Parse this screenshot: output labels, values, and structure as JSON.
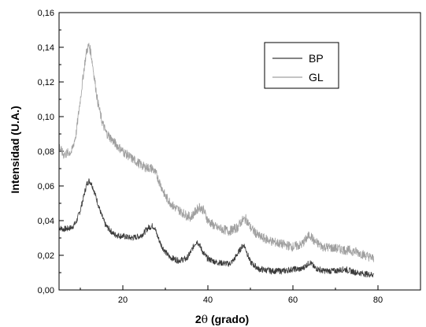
{
  "chart_data": {
    "type": "line",
    "title": "",
    "xlabel_prefix": "2",
    "xlabel_symbol": "θ",
    "xlabel_suffix": " (grado)",
    "ylabel": "Intensidad (U.A.)",
    "xlim": [
      5,
      90
    ],
    "ylim": [
      0.0,
      0.16
    ],
    "x_ticks": [
      20,
      40,
      60,
      80
    ],
    "x_tick_labels": [
      "20",
      "40",
      "60",
      "80"
    ],
    "y_ticks": [
      0.0,
      0.02,
      0.04,
      0.06,
      0.08,
      0.1,
      0.12,
      0.14,
      0.16
    ],
    "y_tick_labels": [
      "0,00",
      "0,02",
      "0,04",
      "0,06",
      "0,08",
      "0,10",
      "0,12",
      "0,14",
      "0,16"
    ],
    "grid": false,
    "legend_position": "top-right",
    "series": [
      {
        "name": "BP",
        "color": "#3a3a3a",
        "x": [
          5,
          6,
          8,
          9,
          10,
          11,
          11.5,
          12,
          12.5,
          13,
          14,
          15,
          16,
          18,
          20,
          22,
          24,
          25,
          26,
          27,
          27.5,
          28,
          29,
          30,
          31,
          33,
          35,
          36,
          37,
          37.5,
          38,
          39,
          40,
          42,
          45,
          46,
          47,
          48,
          48.5,
          49,
          50,
          52,
          55,
          58,
          60,
          62,
          63,
          64,
          65,
          67,
          70,
          72,
          75,
          78,
          79
        ],
        "y": [
          0.036,
          0.035,
          0.036,
          0.039,
          0.046,
          0.056,
          0.061,
          0.063,
          0.062,
          0.059,
          0.051,
          0.043,
          0.037,
          0.032,
          0.031,
          0.03,
          0.031,
          0.033,
          0.036,
          0.037,
          0.036,
          0.032,
          0.026,
          0.022,
          0.019,
          0.017,
          0.018,
          0.022,
          0.027,
          0.028,
          0.026,
          0.021,
          0.018,
          0.016,
          0.015,
          0.017,
          0.021,
          0.025,
          0.026,
          0.023,
          0.016,
          0.012,
          0.011,
          0.011,
          0.012,
          0.012,
          0.014,
          0.016,
          0.013,
          0.011,
          0.011,
          0.012,
          0.01,
          0.009,
          0.009
        ]
      },
      {
        "name": "GL",
        "color": "#a0a0a0",
        "x": [
          5,
          6,
          8,
          9,
          10,
          11,
          11.5,
          12,
          12.5,
          13,
          14,
          15,
          16,
          18,
          20,
          22,
          25,
          27,
          28,
          29,
          30,
          32,
          35,
          36,
          37,
          38,
          39,
          40,
          42,
          45,
          47,
          48,
          49,
          50,
          52,
          55,
          58,
          60,
          62,
          63,
          64,
          65,
          67,
          70,
          75,
          78,
          79
        ],
        "y": [
          0.083,
          0.078,
          0.08,
          0.09,
          0.11,
          0.13,
          0.138,
          0.141,
          0.137,
          0.128,
          0.11,
          0.098,
          0.091,
          0.085,
          0.08,
          0.076,
          0.071,
          0.07,
          0.066,
          0.06,
          0.054,
          0.048,
          0.043,
          0.042,
          0.045,
          0.048,
          0.046,
          0.04,
          0.036,
          0.034,
          0.036,
          0.04,
          0.041,
          0.036,
          0.031,
          0.028,
          0.026,
          0.025,
          0.026,
          0.029,
          0.032,
          0.028,
          0.025,
          0.024,
          0.022,
          0.019,
          0.018
        ]
      }
    ]
  }
}
